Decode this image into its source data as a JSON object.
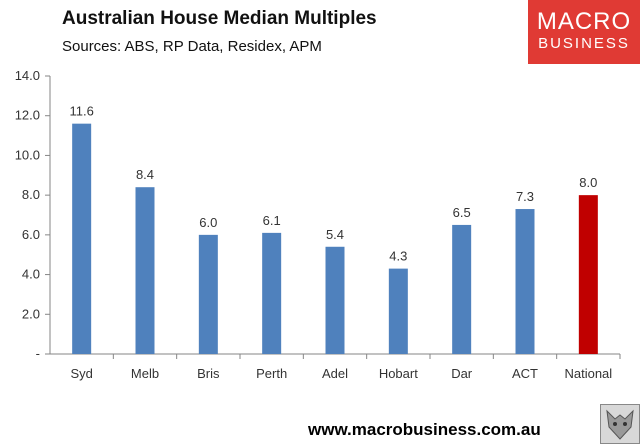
{
  "header": {
    "title": "Australian House Median Multiples",
    "subtitle": "Sources: ABS, RP Data, Residex, APM"
  },
  "logo": {
    "line1": "MACRO",
    "line2": "BUSINESS",
    "color": "#e03a34"
  },
  "footer": {
    "url": "www.macrobusiness.com.au"
  },
  "chart_data": {
    "type": "bar",
    "title": "Australian House Median Multiples",
    "subtitle": "Sources: ABS, RP Data, Residex, APM",
    "categories": [
      "Syd",
      "Melb",
      "Bris",
      "Perth",
      "Adel",
      "Hobart",
      "Dar",
      "ACT",
      "National"
    ],
    "values": [
      11.6,
      8.4,
      6.0,
      6.1,
      5.4,
      4.3,
      6.5,
      7.3,
      8.0
    ],
    "data_labels": [
      "11.6",
      "8.4",
      "6.0",
      "6.1",
      "5.4",
      "4.3",
      "6.5",
      "7.3",
      "8.0"
    ],
    "ylim": [
      0,
      14
    ],
    "yticks": [
      0,
      2,
      4,
      6,
      8,
      10,
      12,
      14
    ],
    "ytick_labels": [
      "-",
      "2.0",
      "4.0",
      "6.0",
      "8.0",
      "10.0",
      "12.0",
      "14.0"
    ],
    "grid": false,
    "legend": "none",
    "bar_color": "#4f81bd",
    "highlight_color": "#c00000",
    "highlight_category": "National"
  }
}
